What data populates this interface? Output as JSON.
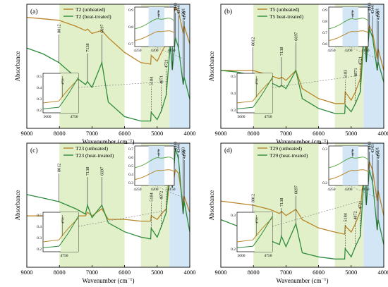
{
  "figure": {
    "ylabel": "Absorbance",
    "xlabel": "Wavenumber (cm",
    "xlabel_sup": "−1",
    "xlabel_end": ")",
    "colors": {
      "unheated": "#b8862a",
      "heated": "#2e8b3c",
      "green_band": "#e2f0c9",
      "blue_band": "#d3e6f5",
      "inset_green": "#5aa646"
    }
  },
  "chart_data": [
    {
      "type": "line",
      "panel": "(a)",
      "legend": [
        "T2 (unheated)",
        "T2 (heat-treated)"
      ],
      "xlim": [
        9000,
        4000
      ],
      "ylim": [
        0.1,
        0.95
      ],
      "xticks": [
        "9000",
        "8000",
        "7000",
        "6000",
        "5000",
        "4000"
      ],
      "peaks": [
        "8012",
        "7138",
        "6697",
        "5184",
        "4871",
        "4721",
        "4597",
        "4536",
        "4440",
        "4344",
        "4201",
        "4170"
      ],
      "inset_top": {
        "label": "4170",
        "xticks": [
          "4250",
          "4200",
          "4150"
        ],
        "yticks": [
          "0.7",
          "0.8",
          "0.9"
        ]
      },
      "inset_bottom": {
        "label": "4721",
        "xticks": [
          "5000",
          "4750"
        ],
        "yticks": [
          "0.2",
          "0.3",
          "0.4",
          "0.5"
        ]
      },
      "series": [
        {
          "name": "T2 (unheated)",
          "x": [
            9000,
            8500,
            8012,
            7500,
            7200,
            7138,
            7000,
            6697,
            6500,
            6000,
            5500,
            5200,
            5184,
            5000,
            4871,
            4721,
            4597,
            4536,
            4440,
            4344,
            4201,
            4170,
            4000
          ],
          "y": [
            0.86,
            0.85,
            0.84,
            0.8,
            0.77,
            0.78,
            0.75,
            0.77,
            0.72,
            0.62,
            0.55,
            0.54,
            0.6,
            0.56,
            0.62,
            0.68,
            0.92,
            0.85,
            0.93,
            0.9,
            0.75,
            0.8,
            0.68
          ]
        },
        {
          "name": "T2 (heat-treated)",
          "x": [
            9000,
            8500,
            8012,
            7500,
            7200,
            7138,
            7000,
            6697,
            6500,
            6000,
            5500,
            5200,
            5184,
            5000,
            4871,
            4721,
            4597,
            4536,
            4440,
            4344,
            4201,
            4170,
            4000
          ],
          "y": [
            0.65,
            0.61,
            0.55,
            0.45,
            0.4,
            0.42,
            0.38,
            0.55,
            0.28,
            0.18,
            0.15,
            0.15,
            0.21,
            0.16,
            0.22,
            0.33,
            0.68,
            0.5,
            0.72,
            0.65,
            0.4,
            0.45,
            0.3
          ]
        }
      ]
    },
    {
      "type": "line",
      "panel": "(b)",
      "legend": [
        "T5 (unheated)",
        "T5 heat-treated)"
      ],
      "xlim": [
        9000,
        4000
      ],
      "ylim": [
        0.2,
        0.95
      ],
      "xticks": [
        "9000",
        "8000",
        "7000",
        "6000",
        "5000",
        "4000"
      ],
      "peaks": [
        "8012",
        "7138",
        "6697",
        "5183",
        "4871",
        "4721",
        "4597",
        "4537",
        "4440",
        "4344",
        "4201",
        "4170"
      ],
      "inset_top": {
        "label": "4170",
        "xticks": [
          "4250",
          "4200",
          "4150"
        ],
        "yticks": [
          "0.6",
          "0.7",
          "0.8",
          "0.9"
        ]
      },
      "inset_bottom": {
        "label": "4721",
        "xticks": [
          "5000",
          "4750"
        ],
        "yticks": [
          "0.3",
          "0.4",
          "0.5"
        ]
      },
      "series": [
        {
          "name": "T5 (unheated)",
          "x": [
            9000,
            8500,
            8012,
            7500,
            7200,
            7138,
            7000,
            6697,
            6500,
            6000,
            5500,
            5200,
            5183,
            5000,
            4871,
            4721,
            4597,
            4537,
            4440,
            4344,
            4201,
            4170,
            4000
          ],
          "y": [
            0.55,
            0.55,
            0.55,
            0.52,
            0.5,
            0.51,
            0.49,
            0.55,
            0.44,
            0.38,
            0.35,
            0.35,
            0.42,
            0.37,
            0.42,
            0.5,
            0.8,
            0.65,
            0.82,
            0.78,
            0.62,
            0.68,
            0.55
          ]
        },
        {
          "name": "T5 heat-treated)",
          "x": [
            9000,
            8500,
            8012,
            7500,
            7200,
            7138,
            7000,
            6697,
            6500,
            6000,
            5500,
            5200,
            5183,
            5000,
            4871,
            4721,
            4597,
            4537,
            4440,
            4344,
            4201,
            4170,
            4000
          ],
          "y": [
            0.55,
            0.54,
            0.52,
            0.48,
            0.45,
            0.46,
            0.44,
            0.55,
            0.38,
            0.32,
            0.29,
            0.29,
            0.34,
            0.3,
            0.35,
            0.42,
            0.78,
            0.6,
            0.8,
            0.75,
            0.55,
            0.6,
            0.48
          ]
        }
      ]
    },
    {
      "type": "line",
      "panel": "(c)",
      "legend": [
        "T23 (unheated)",
        "T23 (heat-treated)"
      ],
      "xlim": [
        9000,
        4000
      ],
      "ylim": [
        0.15,
        0.85
      ],
      "xticks": [
        "9000",
        "8000",
        "7000",
        "6000",
        "5000",
        "4000"
      ],
      "peaks": [
        "8012",
        "7138",
        "6697",
        "5184",
        "4872",
        "4721",
        "4595",
        "4537",
        "4440",
        "4344",
        "4203",
        "4170"
      ],
      "inset_top": {
        "label": "4170",
        "xticks": [
          "4250",
          "4200",
          "4150"
        ],
        "yticks": [
          "0.3",
          "0.4",
          "0.5",
          "0.6",
          "0.7"
        ]
      },
      "inset_bottom": {
        "label": "4721",
        "xticks": [
          "4750"
        ],
        "yticks": [
          "0.2",
          "0.3",
          "0.4",
          "0.5"
        ]
      },
      "series": [
        {
          "name": "T23 (unheated)",
          "x": [
            9000,
            8500,
            8012,
            7500,
            7200,
            7138,
            7000,
            6697,
            6500,
            6000,
            5500,
            5200,
            5184,
            5000,
            4872,
            4721,
            4595,
            4537,
            4440,
            4344,
            4203,
            4170,
            4000
          ],
          "y": [
            0.44,
            0.44,
            0.45,
            0.44,
            0.44,
            0.46,
            0.44,
            0.48,
            0.42,
            0.42,
            0.41,
            0.41,
            0.44,
            0.42,
            0.45,
            0.48,
            0.66,
            0.6,
            0.7,
            0.68,
            0.5,
            0.55,
            0.46
          ]
        },
        {
          "name": "T23 (heat-treated)",
          "x": [
            9000,
            8500,
            8012,
            7500,
            7200,
            7138,
            7000,
            6697,
            6500,
            6000,
            5500,
            5200,
            5184,
            5000,
            4872,
            4721,
            4595,
            4537,
            4440,
            4344,
            4203,
            4170,
            4000
          ],
          "y": [
            0.56,
            0.54,
            0.52,
            0.48,
            0.45,
            0.5,
            0.43,
            0.5,
            0.4,
            0.35,
            0.32,
            0.31,
            0.37,
            0.32,
            0.38,
            0.46,
            0.78,
            0.6,
            0.82,
            0.76,
            0.45,
            0.52,
            0.35
          ]
        }
      ]
    },
    {
      "type": "line",
      "panel": "(d)",
      "legend": [
        "T29 (unheated)",
        "T29 (heat-treated)"
      ],
      "xlim": [
        9000,
        4000
      ],
      "ylim": [
        0.15,
        0.75
      ],
      "xticks": [
        "9000",
        "8000",
        "7000",
        "6000",
        "5000",
        "4000"
      ],
      "peaks": [
        "8012",
        "7138",
        "6697",
        "5184",
        "4872",
        "4721",
        "4597",
        "4537",
        "4440",
        "4343",
        "4201",
        "4171"
      ],
      "inset_top": {
        "label": "4170",
        "xticks": [
          "4250",
          "4200",
          "4150"
        ],
        "yticks": [
          "0.2",
          "0.3"
        ]
      },
      "inset_bottom": {
        "label": "4721",
        "xticks": [
          "5000",
          "4750"
        ],
        "yticks": [
          "0.2",
          "0.3"
        ]
      },
      "series": [
        {
          "name": "T29 (unheated)",
          "x": [
            9000,
            8500,
            8012,
            7500,
            7200,
            7138,
            7000,
            6697,
            6500,
            6000,
            5500,
            5200,
            5184,
            5000,
            4872,
            4721,
            4597,
            4537,
            4440,
            4343,
            4201,
            4171,
            4000
          ],
          "y": [
            0.47,
            0.46,
            0.45,
            0.43,
            0.41,
            0.42,
            0.4,
            0.43,
            0.38,
            0.34,
            0.32,
            0.31,
            0.35,
            0.32,
            0.36,
            0.42,
            0.64,
            0.55,
            0.66,
            0.62,
            0.47,
            0.52,
            0.4
          ]
        },
        {
          "name": "T29 (heat-treated)",
          "x": [
            9000,
            8500,
            8012,
            7500,
            7200,
            7138,
            7000,
            6697,
            6500,
            6000,
            5500,
            5200,
            5184,
            5000,
            4872,
            4721,
            4597,
            4537,
            4440,
            4343,
            4201,
            4171,
            4000
          ],
          "y": [
            0.38,
            0.35,
            0.32,
            0.28,
            0.26,
            0.3,
            0.25,
            0.36,
            0.22,
            0.2,
            0.19,
            0.19,
            0.24,
            0.2,
            0.25,
            0.3,
            0.6,
            0.45,
            0.62,
            0.56,
            0.33,
            0.38,
            0.26
          ]
        }
      ]
    }
  ]
}
